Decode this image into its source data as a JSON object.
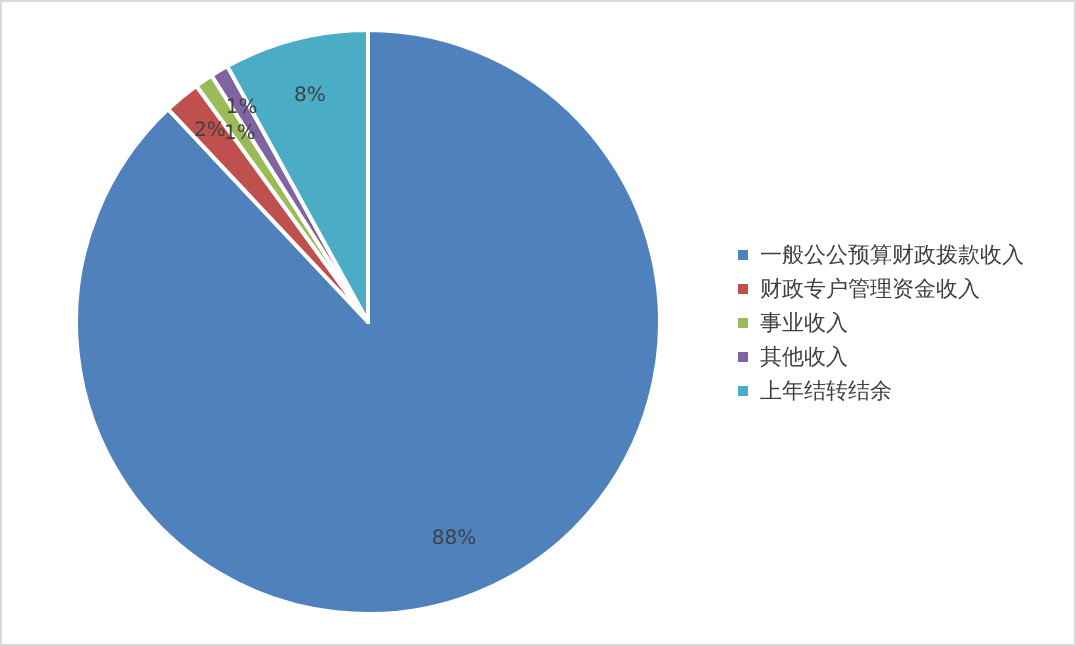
{
  "chart_data": {
    "type": "pie",
    "categories": [
      "一般公公预算财政拨款收入",
      "财政专户管理资金收入",
      "事业收入",
      "其他收入",
      "上年结转结余"
    ],
    "values": [
      88,
      2,
      1,
      1,
      8
    ],
    "colors": [
      "#4f81bd",
      "#c0504d",
      "#9bbb59",
      "#8064a2",
      "#4bacc6"
    ],
    "value_labels": [
      "88%",
      "2%",
      "1%",
      "1%",
      "8%"
    ],
    "legend": "right"
  }
}
